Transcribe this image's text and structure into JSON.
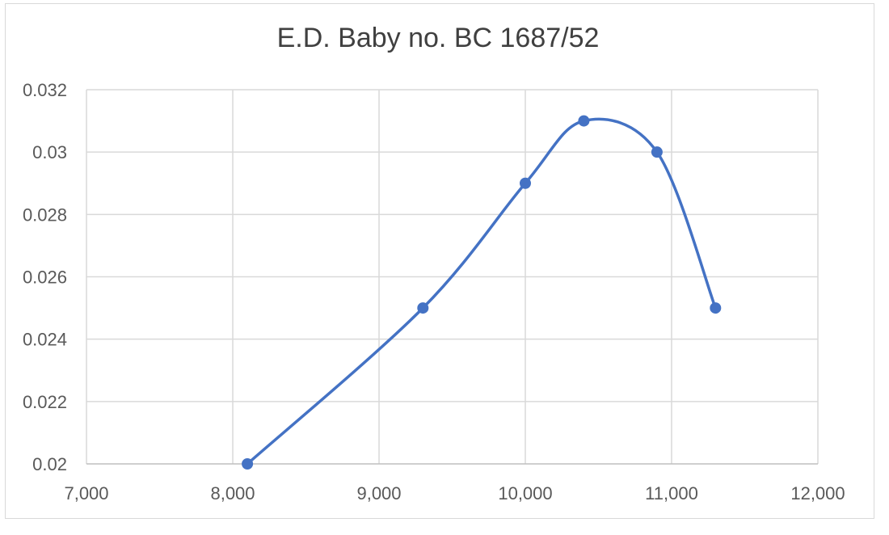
{
  "chart_data": {
    "type": "line",
    "title": "E.D. Baby no. BC 1687/52",
    "xlabel": "",
    "ylabel": "",
    "xlim": [
      7000,
      12000
    ],
    "ylim": [
      0.02,
      0.032
    ],
    "x_ticks": [
      "7,000",
      "8,000",
      "9,000",
      "10,000",
      "11,000",
      "12,000"
    ],
    "y_ticks": [
      "0.02",
      "0.022",
      "0.024",
      "0.026",
      "0.028",
      "0.03",
      "0.032"
    ],
    "grid": true,
    "smooth": true,
    "series": [
      {
        "color": "#4472c4",
        "x": [
          8100,
          9300,
          10000,
          10400,
          10900,
          11300
        ],
        "y": [
          0.02,
          0.025,
          0.029,
          0.031,
          0.03,
          0.025
        ]
      }
    ]
  }
}
